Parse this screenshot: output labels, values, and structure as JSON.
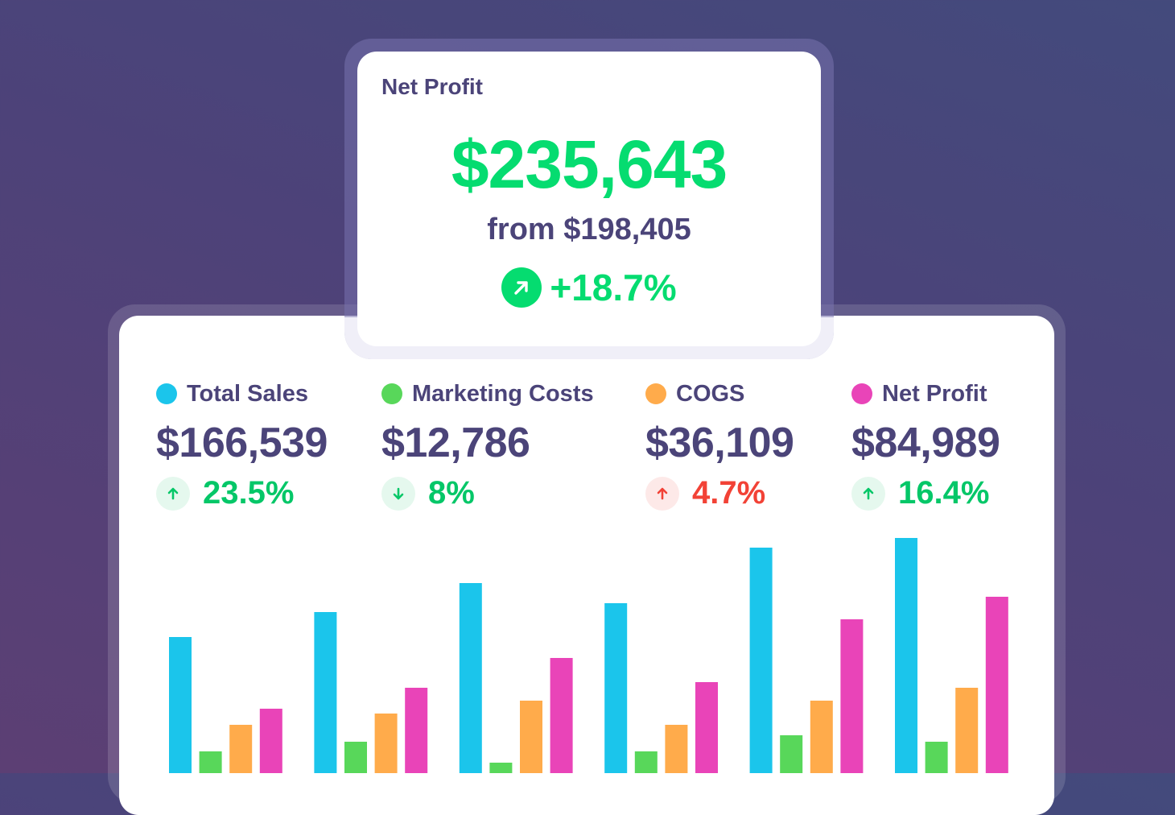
{
  "hero": {
    "title": "Net Profit",
    "value": "$235,643",
    "from": "from $198,405",
    "change": "+18.7%",
    "change_icon": "arrow-up-right-icon",
    "color": "#05dc70"
  },
  "stats": [
    {
      "label": "Total Sales",
      "value": "$166,539",
      "change": "23.5%",
      "direction": "up",
      "dot_color": "#1bc5eb",
      "change_color": "#05c768",
      "badge_bg": "#e5f8ee"
    },
    {
      "label": "Marketing Costs",
      "value": "$12,786",
      "change": "8%",
      "direction": "down",
      "dot_color": "#58d75a",
      "change_color": "#05c768",
      "badge_bg": "#e5f8ee"
    },
    {
      "label": "COGS",
      "value": "$36,109",
      "change": "4.7%",
      "direction": "up",
      "dot_color": "#ffab4b",
      "change_color": "#f24236",
      "badge_bg": "#fde9e8"
    },
    {
      "label": "Net Profit",
      "value": "$84,989",
      "change": "16.4%",
      "direction": "up",
      "dot_color": "#e944b8",
      "change_color": "#05c768",
      "badge_bg": "#e5f8ee"
    }
  ],
  "chart_data": {
    "type": "bar",
    "categories": [
      "1",
      "2",
      "3",
      "4",
      "5",
      "6"
    ],
    "axes_visible": false,
    "grid": false,
    "series": [
      {
        "name": "Total Sales",
        "color": "#1bc5eb",
        "values": [
          209,
          240,
          276,
          251,
          320,
          332
        ]
      },
      {
        "name": "Marketing Costs",
        "color": "#58d75a",
        "values": [
          67,
          79,
          53,
          67,
          87,
          79
        ]
      },
      {
        "name": "COGS",
        "color": "#ffab4b",
        "values": [
          100,
          114,
          130,
          100,
          130,
          146
        ]
      },
      {
        "name": "Net Profit",
        "color": "#e944b8",
        "values": [
          120,
          146,
          183,
          153,
          231,
          259
        ]
      }
    ]
  }
}
